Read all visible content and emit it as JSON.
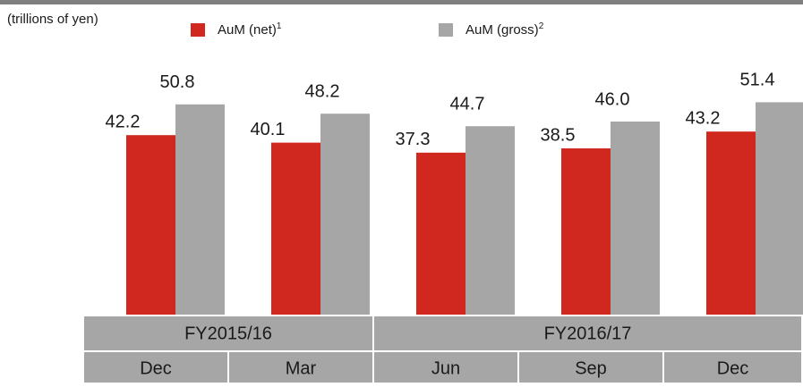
{
  "chart_data": {
    "type": "bar",
    "y_label": "(trillions of yen)",
    "categories": [
      "Dec",
      "Mar",
      "Jun",
      "Sep",
      "Dec"
    ],
    "x_groups": [
      {
        "label": "FY2015/16",
        "categories": [
          "Dec",
          "Mar"
        ]
      },
      {
        "label": "FY2016/17",
        "categories": [
          "Jun",
          "Sep",
          "Dec"
        ]
      }
    ],
    "series": [
      {
        "name": "AuM (net)",
        "footnote": "1",
        "color": "#d0271f",
        "values": [
          42.2,
          40.1,
          37.3,
          38.5,
          43.2
        ],
        "value_labels": [
          "42.2",
          "40.1",
          "37.3",
          "38.5",
          "43.2"
        ]
      },
      {
        "name": "AuM (gross)",
        "footnote": "2",
        "color": "#a6a6a6",
        "values": [
          50.8,
          48.2,
          44.7,
          46.0,
          51.4
        ],
        "value_labels": [
          "50.8",
          "48.2",
          "44.7",
          "46.0",
          "51.4"
        ]
      }
    ],
    "ylim": [
      -8,
      60
    ],
    "grid": false
  }
}
